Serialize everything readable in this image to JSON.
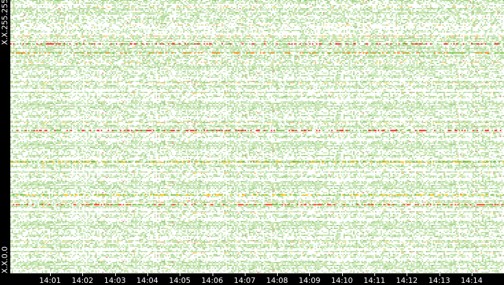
{
  "chart_data": {
    "type": "heatmap",
    "title": "",
    "y_tick_labels": {
      "top": "X.X.255.255",
      "bottom": "X.X.0.0"
    },
    "x_tick_labels": [
      "14:01",
      "14:02",
      "14:03",
      "14:04",
      "14:05",
      "14:06",
      "14:07",
      "14:08",
      "14:09",
      "14:10",
      "14:11",
      "14:12",
      "14:13",
      "14:14"
    ],
    "color_scale": [
      "#ffffff",
      "#a6d98a",
      "#7cc04a",
      "#4f9e1c",
      "#ffc000",
      "#ff8000",
      "#ff2020"
    ],
    "background": "#000000"
  }
}
